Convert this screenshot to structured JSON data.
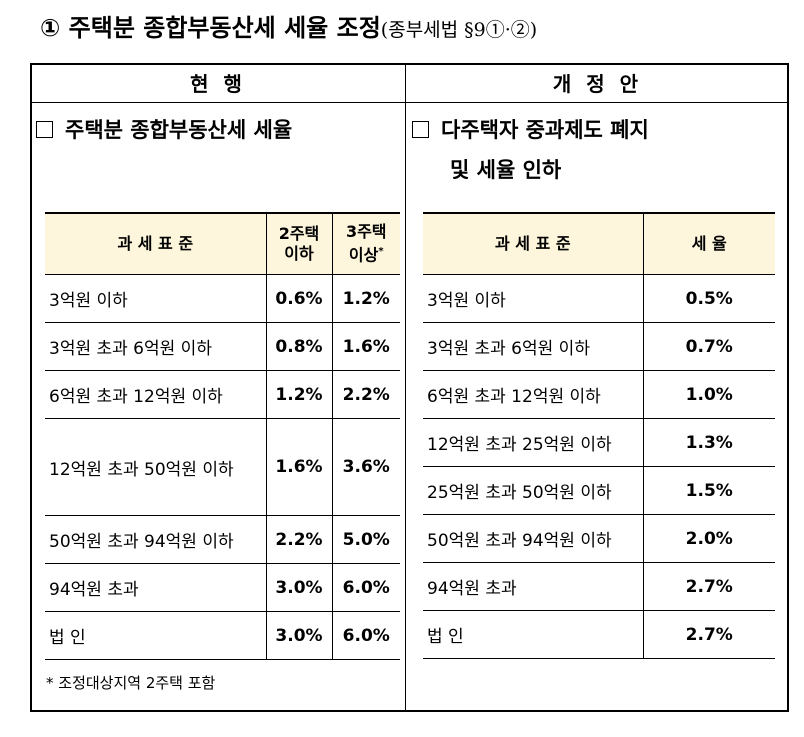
{
  "title": "① 주택분 종합부동산세 세율 조정",
  "title_ref": "(종부세법 §9①·②)",
  "columns": [
    "현 행",
    "개 정 안"
  ],
  "current": {
    "heading": [
      "주택분 종합부동산세 세율"
    ],
    "table": {
      "header": [
        [
          "과 세 표 준"
        ],
        [
          "2주택",
          "이하"
        ],
        [
          "3주택",
          "이상"
        ]
      ],
      "header_mark": "*",
      "rows": [
        [
          "3억원 이하",
          "0.6%",
          "1.2%"
        ],
        [
          "3억원 초과 6억원 이하",
          "0.8%",
          "1.6%"
        ],
        [
          "6억원 초과 12억원 이하",
          "1.2%",
          "2.2%"
        ],
        [
          "12억원 초과 50억원 이하",
          "1.6%",
          "3.6%"
        ],
        [
          "50억원 초과 94억원 이하",
          "2.2%",
          "5.0%"
        ],
        [
          "94억원 초과",
          "3.0%",
          "6.0%"
        ],
        [
          "법 인",
          "3.0%",
          "6.0%"
        ]
      ]
    },
    "footnote": "* 조정대상지역 2주택 포함"
  },
  "proposed": {
    "heading": [
      "다주택자 중과제도 폐지",
      "및 세율 인하"
    ],
    "table": {
      "header": [
        [
          "과 세 표 준"
        ],
        [
          "세 율"
        ]
      ],
      "rows": [
        [
          "3억원 이하",
          "0.5%"
        ],
        [
          "3억원 초과 6억원 이하",
          "0.7%"
        ],
        [
          "6억원 초과 12억원 이하",
          "1.0%"
        ],
        [
          "12억원 초과 25억원 이하",
          "1.3%"
        ],
        [
          "25억원 초과 50억원 이하",
          "1.5%"
        ],
        [
          "50억원 초과 94억원 이하",
          "2.0%"
        ],
        [
          "94억원 초과",
          "2.7%"
        ],
        [
          "법 인",
          "2.7%"
        ]
      ]
    }
  }
}
